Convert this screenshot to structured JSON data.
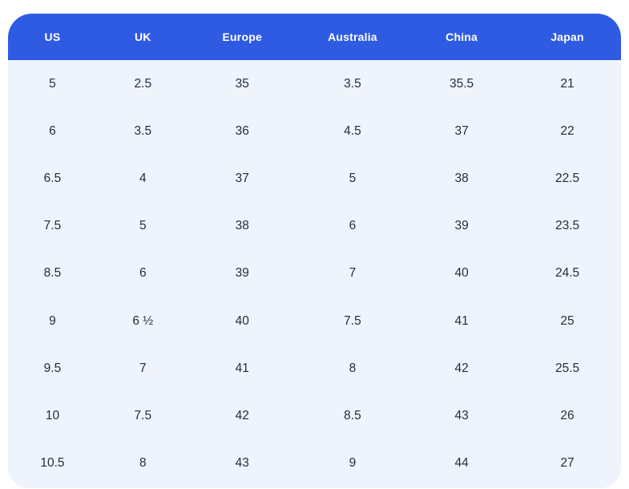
{
  "table": {
    "name": "shoe-size-conversion-table",
    "columns": [
      "US",
      "UK",
      "Europe",
      "Australia",
      "China",
      "Japan"
    ],
    "rows": [
      [
        "5",
        "2.5",
        "35",
        "3.5",
        "35.5",
        "21"
      ],
      [
        "6",
        "3.5",
        "36",
        "4.5",
        "37",
        "22"
      ],
      [
        "6.5",
        "4",
        "37",
        "5",
        "38",
        "22.5"
      ],
      [
        "7.5",
        "5",
        "38",
        "6",
        "39",
        "23.5"
      ],
      [
        "8.5",
        "6",
        "39",
        "7",
        "40",
        "24.5"
      ],
      [
        "9",
        "6 ½",
        "40",
        "7.5",
        "41",
        "25"
      ],
      [
        "9.5",
        "7",
        "41",
        "8",
        "42",
        "25.5"
      ],
      [
        "10",
        "7.5",
        "42",
        "8.5",
        "43",
        "26"
      ],
      [
        "10.5",
        "8",
        "43",
        "9",
        "44",
        "27"
      ]
    ]
  },
  "colors": {
    "page_bg": "#ffffff",
    "header_bg": "#2f5be3",
    "header_text": "#ffffff",
    "body_bg": "#eef3fc",
    "cell_text": "#1f2d3d"
  }
}
